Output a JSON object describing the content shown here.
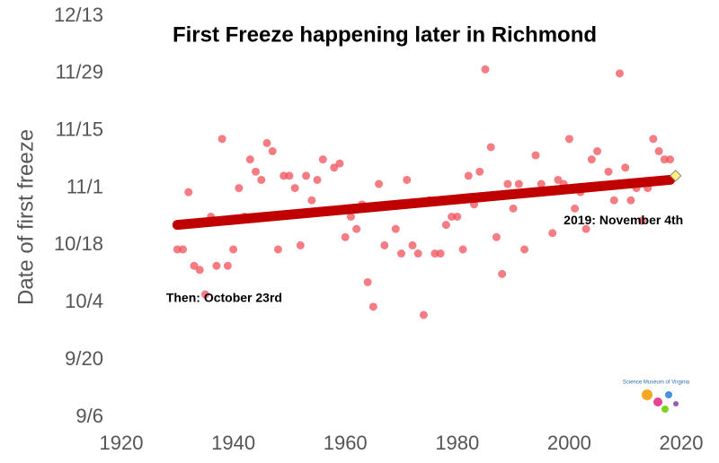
{
  "chart_data": {
    "type": "scatter",
    "title": "First Freeze happening later in Richmond",
    "ylabel": "Date of first freeze",
    "x": [
      1930,
      1931,
      1932,
      1933,
      1934,
      1935,
      1936,
      1937,
      1938,
      1939,
      1940,
      1941,
      1942,
      1943,
      1944,
      1945,
      1946,
      1947,
      1948,
      1949,
      1950,
      1951,
      1952,
      1953,
      1954,
      1955,
      1956,
      1958,
      1959,
      1960,
      1961,
      1962,
      1963,
      1964,
      1965,
      1966,
      1967,
      1968,
      1969,
      1970,
      1971,
      1972,
      1973,
      1974,
      1975,
      1976,
      1977,
      1978,
      1979,
      1980,
      1981,
      1982,
      1983,
      1984,
      1985,
      1986,
      1987,
      1988,
      1989,
      1990,
      1991,
      1992,
      1994,
      1995,
      1997,
      1998,
      1999,
      2000,
      2001,
      2002,
      2003,
      2004,
      2005,
      2007,
      2008,
      2009,
      2010,
      2011,
      2012,
      2013,
      2014,
      2015,
      2016,
      2017,
      2018
    ],
    "values": [
      290,
      290,
      304,
      286,
      285,
      279,
      298,
      286,
      317,
      286,
      290,
      305,
      298,
      312,
      309,
      307,
      316,
      314,
      290,
      308,
      308,
      305,
      291,
      308,
      302,
      307,
      312,
      310,
      311,
      293,
      298,
      295,
      301,
      282,
      276,
      306,
      291,
      301,
      295,
      289,
      307,
      291,
      289,
      274,
      302,
      289,
      289,
      296,
      298,
      298,
      290,
      308,
      301,
      309,
      334,
      315,
      293,
      284,
      306,
      300,
      306,
      290,
      313,
      306,
      294,
      307,
      306,
      317,
      300,
      304,
      295,
      312,
      314,
      309,
      302,
      333,
      310,
      302,
      305,
      297,
      305,
      317,
      314,
      312,
      312
    ],
    "color": "#f0505a",
    "trend": {
      "x": [
        1930,
        2018
      ],
      "values": [
        296,
        307
      ],
      "color": "#c00000"
    },
    "highlight": {
      "x": 2019,
      "value": 308,
      "color": "#fff27a"
    },
    "annotations": [
      {
        "text": "Then: October 23rd",
        "x": 1928,
        "y": 278
      },
      {
        "text": "2019: November 4th",
        "x": 1999,
        "y": 297
      }
    ],
    "logo_text": "Science Museum of Virginia",
    "xlim": [
      1920,
      2020
    ],
    "xticks": [
      1920,
      1940,
      1960,
      1980,
      2000,
      2020
    ],
    "ylim": [
      249,
      347
    ],
    "yticks": [
      {
        "value": 249,
        "label": "9/6"
      },
      {
        "value": 263,
        "label": "9/20"
      },
      {
        "value": 277,
        "label": "10/4"
      },
      {
        "value": 291,
        "label": "10/18"
      },
      {
        "value": 305,
        "label": "11/1"
      },
      {
        "value": 319,
        "label": "11/15"
      },
      {
        "value": 333,
        "label": "11/29"
      },
      {
        "value": 347,
        "label": "12/13"
      }
    ]
  }
}
